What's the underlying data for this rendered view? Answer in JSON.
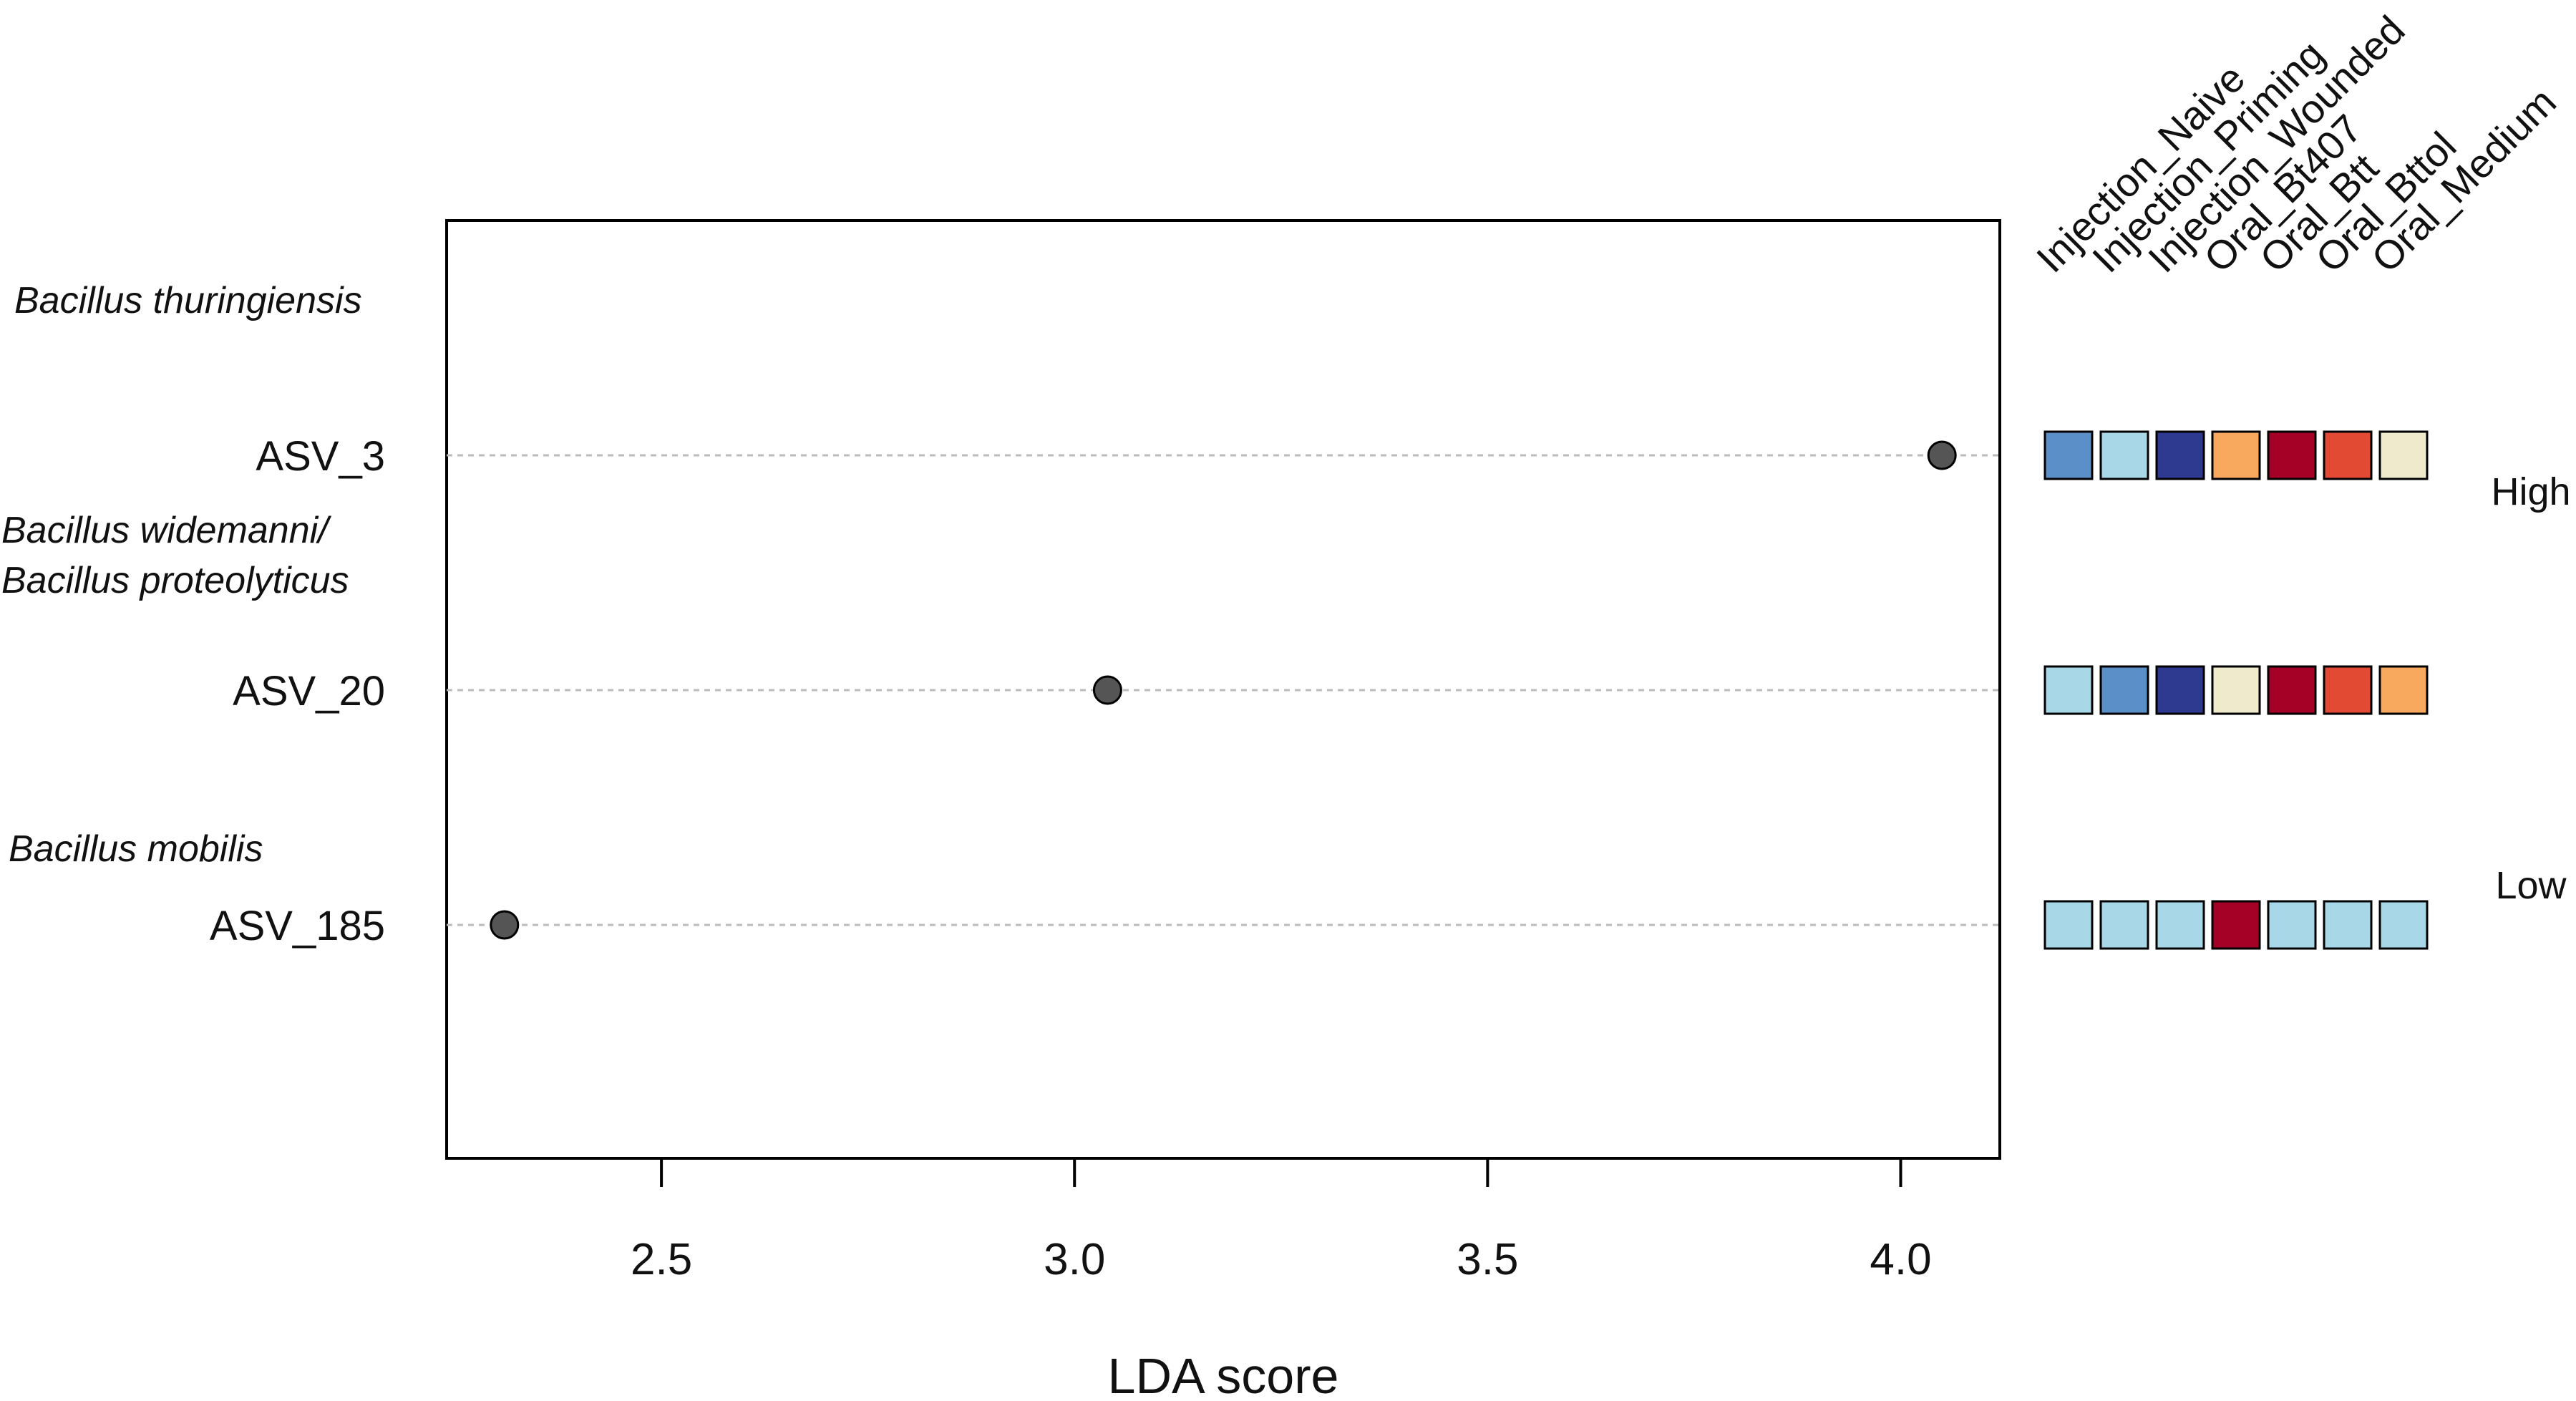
{
  "chart_data": {
    "type": "scatter",
    "xlabel": "LDA score",
    "xlim": [
      2.24,
      4.12
    ],
    "xticks": [
      2.5,
      3.0,
      3.5,
      4.0
    ],
    "xtick_labels": [
      "2.5",
      "3.0",
      "3.5",
      "4.0"
    ],
    "grid": false,
    "taxa_labels": [
      "Bacillus thuringiensis",
      "Bacillus widemanni/",
      "Bacillus proteolyticus",
      "Bacillus mobilis"
    ],
    "features": [
      {
        "name": "ASV_3",
        "lda": 4.05
      },
      {
        "name": "ASV_20",
        "lda": 3.04
      },
      {
        "name": "ASV_185",
        "lda": 2.31
      }
    ],
    "heatmap": {
      "groups": [
        "Injection_Naive",
        "Injection_Priming",
        "Injection_Wounded",
        "Oral_Bt407",
        "Oral_Btt",
        "Oral_Bttol",
        "Oral_Medium"
      ],
      "rows": [
        [
          "#5b8fc7",
          "#a8d8e8",
          "#2e3a8f",
          "#f9a95e",
          "#a50026",
          "#e34a33",
          "#eeeacb"
        ],
        [
          "#a8d8e8",
          "#5b8fc7",
          "#2e3a8f",
          "#eeeacb",
          "#a50026",
          "#e34a33",
          "#f9a95e"
        ],
        [
          "#a8d8e8",
          "#a8d8e8",
          "#a8d8e8",
          "#a50026",
          "#a8d8e8",
          "#a8d8e8",
          "#a8d8e8"
        ]
      ],
      "scale_high": "High",
      "scale_low": "Low"
    }
  },
  "colors": {
    "point": "#555555",
    "guide": "#bbbbbb",
    "frame": "#000000"
  }
}
